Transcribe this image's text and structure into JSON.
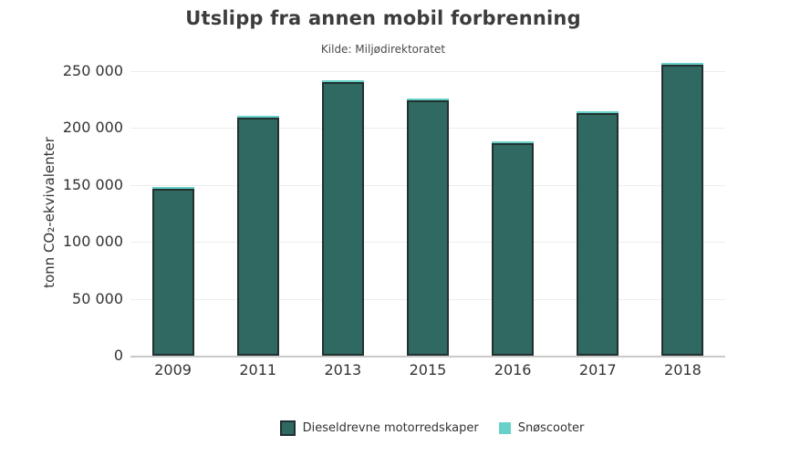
{
  "chart_data": {
    "type": "bar",
    "stacked": true,
    "title": "Utslipp fra annen mobil forbrenning",
    "subtitle": "Kilde: Miljødirektoratet",
    "ylabel": "tonn CO₂-ekvivalenter",
    "xlabel": "",
    "categories": [
      "2009",
      "2011",
      "2013",
      "2015",
      "2016",
      "2017",
      "2018"
    ],
    "series": [
      {
        "name": "Dieseldrevne motorredskaper",
        "color": "#2f6962",
        "values": [
          146500,
          209500,
          240500,
          224500,
          186500,
          213500,
          255500
        ]
      },
      {
        "name": "Snøscooter",
        "color": "#68d1ca",
        "values": [
          1500,
          1500,
          1500,
          1500,
          1500,
          1500,
          1500
        ]
      }
    ],
    "ylim": [
      0,
      250000
    ],
    "yticks": [
      0,
      50000,
      100000,
      150000,
      200000,
      250000
    ],
    "ytick_labels": [
      "0",
      "50 000",
      "100 000",
      "150 000",
      "200 000",
      "250 000"
    ],
    "grid": true,
    "legend_position": "bottom",
    "axis_color": "#c9c9c9",
    "grid_color": "#ededed"
  }
}
